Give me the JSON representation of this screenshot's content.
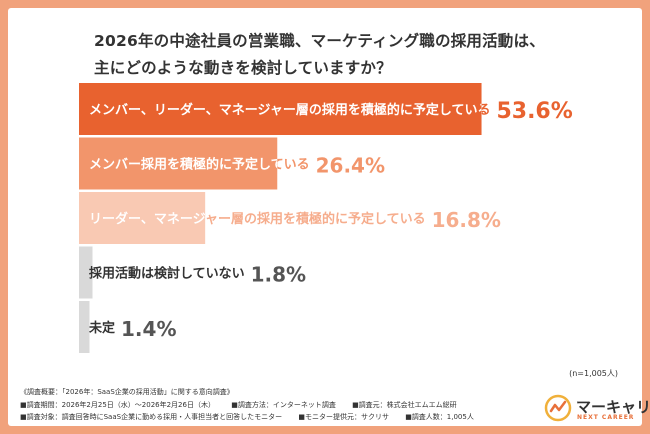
{
  "title": {
    "line1": "2026年の中途社員の営業職、マーケティング職の採用活動は、",
    "line2": "主にどのような動きを検討していますか？"
  },
  "chart_data": {
    "type": "bar",
    "orientation": "horizontal",
    "categories": [
      "メンバー、リーダー、マネージャー層の採用を積極的に予定している",
      "メンバー採用を積極的に予定している",
      "リーダー、マネージャー層の採用を積極的に予定している",
      "採用活動は検討していない",
      "未定"
    ],
    "values": [
      53.6,
      26.4,
      16.8,
      1.8,
      1.4
    ],
    "value_labels": [
      "53.6%",
      "26.4%",
      "16.8%",
      "1.8%",
      "1.4%"
    ],
    "colors": [
      "#e8622f",
      "#f2956b",
      "#f9c9b3",
      "#d9d9d9",
      "#d9d9d9"
    ],
    "value_colors": [
      "#e8622f",
      "#f2956b",
      "#f6ad8d",
      "#555555",
      "#555555"
    ],
    "xlim": [
      0,
      100
    ],
    "grid": false,
    "legend": "none"
  },
  "sample_note": "(n=1,005人)",
  "footer": {
    "header": "《調査概要：「2026年：SaaS企業の採用活動」に関する意向調査》",
    "period": "■調査期間：2026年2月25日（水）〜2026年2月26日（木）",
    "method": "■調査方法：インターネット調査",
    "org": "■調査元：株式会社エムエム総研",
    "target": "■調査対象：調査回答時にSaaS企業に勤める採用・人事担当者と回答したモニター",
    "provider": "■モニター提供元：サクリサ",
    "count": "■調査人数：1,005人"
  },
  "logo": {
    "name": "マーキャリ",
    "sub": "NEXT CAREER",
    "accent": "#e8703a"
  }
}
